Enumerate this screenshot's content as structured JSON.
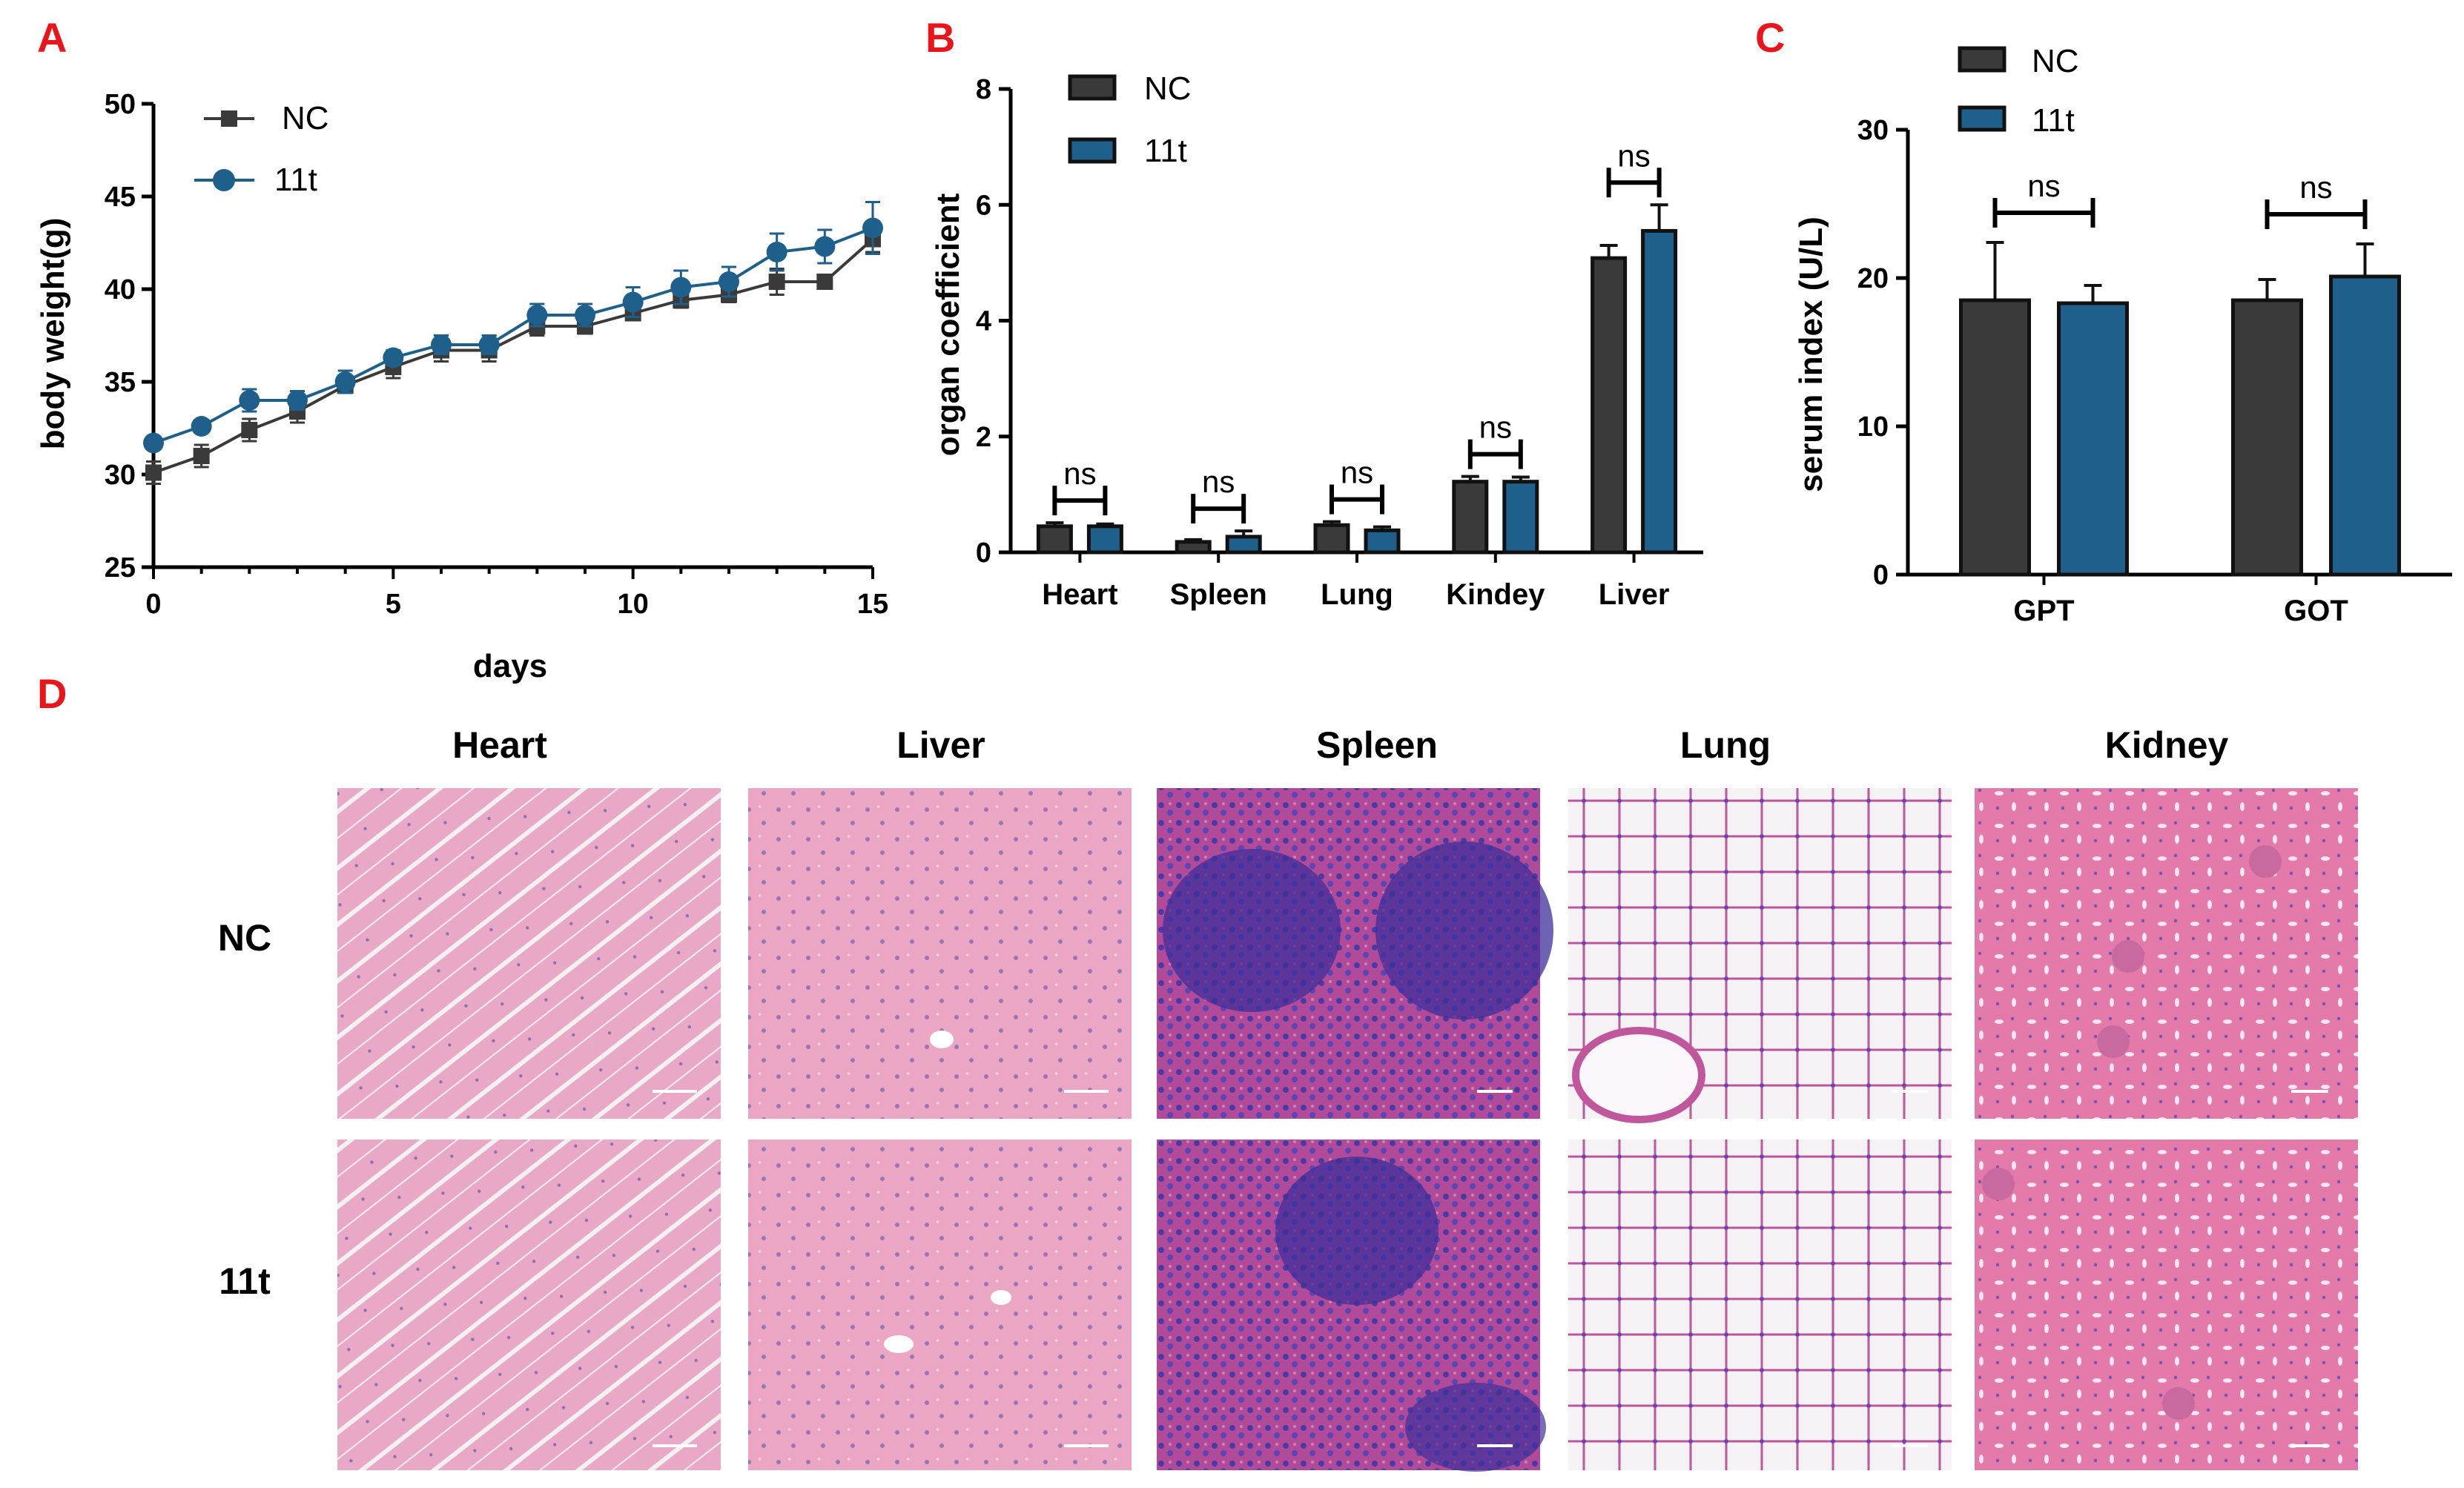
{
  "panels": {
    "A": "A",
    "B": "B",
    "C": "C",
    "D": "D"
  },
  "colors": {
    "nc": "#3a3a3a",
    "t11": "#1f5f8b",
    "panel_letter": "#e8151b",
    "axis": "#000000"
  },
  "chart_data": [
    {
      "panel": "A",
      "type": "line",
      "xlabel": "days",
      "ylabel": "body weight(g)",
      "xlim": [
        0,
        15
      ],
      "ylim": [
        25,
        50
      ],
      "xticks": [
        0,
        5,
        10,
        15
      ],
      "yticks": [
        25,
        30,
        35,
        40,
        45,
        50
      ],
      "grid": false,
      "legend": "top-left",
      "series": [
        {
          "name": "NC",
          "marker": "square",
          "color": "#3a3a3a",
          "x": [
            0,
            1,
            2,
            3,
            4,
            5,
            6,
            7,
            8,
            9,
            10,
            11,
            12,
            13,
            14,
            15
          ],
          "values": [
            30.1,
            31.0,
            32.4,
            33.4,
            34.8,
            35.8,
            36.7,
            36.7,
            38.0,
            38.0,
            38.7,
            39.4,
            39.7,
            40.4,
            40.4,
            42.7
          ],
          "errors": [
            0.6,
            0.6,
            0.6,
            0.6,
            0.4,
            0.6,
            0.6,
            0.6,
            0.5,
            0.4,
            0.3,
            0.4,
            0.4,
            0.7,
            0.3,
            0.7
          ]
        },
        {
          "name": "11t",
          "marker": "circle",
          "color": "#1f5f8b",
          "x": [
            0,
            1,
            2,
            3,
            4,
            5,
            6,
            7,
            8,
            9,
            10,
            11,
            12,
            13,
            14,
            15
          ],
          "values": [
            31.7,
            32.6,
            34.0,
            34.0,
            35.0,
            36.3,
            37.0,
            37.0,
            38.6,
            38.6,
            39.3,
            40.1,
            40.4,
            42.0,
            42.3,
            43.3
          ],
          "errors": [
            0.3,
            0.3,
            0.6,
            0.5,
            0.6,
            0.4,
            0.5,
            0.5,
            0.6,
            0.6,
            0.8,
            0.9,
            0.8,
            1.0,
            0.9,
            1.4
          ]
        }
      ]
    },
    {
      "panel": "B",
      "type": "bar",
      "ylabel": "organ coefficient",
      "xlabel": "",
      "ylim": [
        0,
        8
      ],
      "yticks": [
        0,
        2,
        4,
        6,
        8
      ],
      "grid": false,
      "legend": "top-left",
      "categories": [
        "Heart",
        "Spleen",
        "Lung",
        "Kindey",
        "Liver"
      ],
      "series": [
        {
          "name": "NC",
          "color": "#3a3a3a",
          "values": [
            0.45,
            0.18,
            0.47,
            1.22,
            5.08
          ],
          "errors": [
            0.06,
            0.04,
            0.06,
            0.09,
            0.22
          ]
        },
        {
          "name": "11t",
          "color": "#1f5f8b",
          "values": [
            0.45,
            0.27,
            0.38,
            1.22,
            5.55
          ],
          "errors": [
            0.04,
            0.1,
            0.06,
            0.08,
            0.45
          ]
        }
      ],
      "annotations": [
        "ns",
        "ns",
        "ns",
        "ns",
        "ns"
      ]
    },
    {
      "panel": "C",
      "type": "bar",
      "ylabel": "serum index (U/L)",
      "xlabel": "",
      "ylim": [
        0,
        30
      ],
      "yticks": [
        0,
        10,
        20,
        30
      ],
      "grid": false,
      "legend": "top-left",
      "categories": [
        "GPT",
        "GOT"
      ],
      "series": [
        {
          "name": "NC",
          "color": "#3a3a3a",
          "values": [
            18.5,
            18.5
          ],
          "errors": [
            3.9,
            1.4
          ]
        },
        {
          "name": "11t",
          "color": "#1f5f8b",
          "values": [
            18.3,
            20.1
          ],
          "errors": [
            1.2,
            2.2
          ]
        }
      ],
      "annotations": [
        "ns",
        "ns"
      ]
    }
  ],
  "histology": {
    "columns": [
      "Heart",
      "Liver",
      "Spleen",
      "Lung",
      "Kidney"
    ],
    "rows": [
      "NC",
      "11t"
    ]
  }
}
